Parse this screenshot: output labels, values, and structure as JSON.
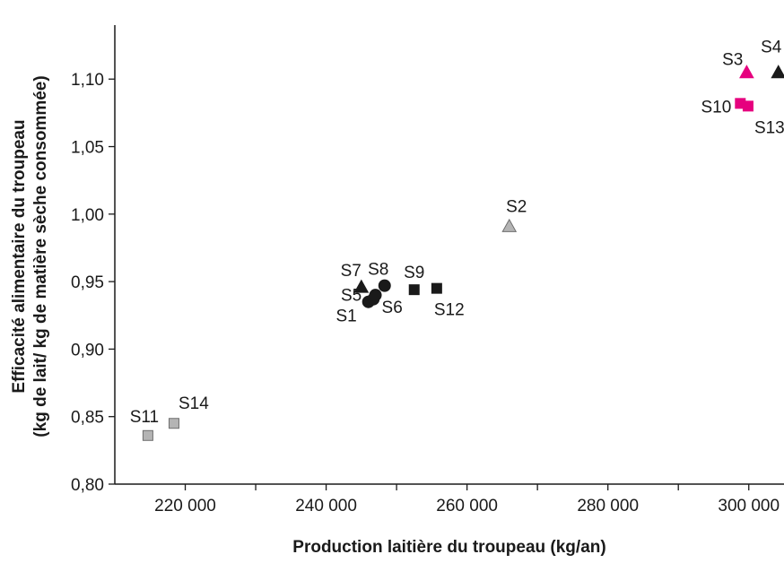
{
  "chart_data": {
    "type": "scatter",
    "title": "",
    "xlabel": "Production laitière du troupeau (kg/an)",
    "ylabel_line1": "Efficacité alimentaire du troupeau",
    "ylabel_line2": "(kg de lait/ kg de matière sèche consommée)",
    "xlim": [
      210000,
      305000
    ],
    "ylim": [
      0.8,
      1.14
    ],
    "xticks": [
      220000,
      240000,
      260000,
      280000,
      300000
    ],
    "xtick_labels": [
      "220 000",
      "240 000",
      "260 000",
      "280 000",
      "300 000"
    ],
    "yticks": [
      0.8,
      0.85,
      0.9,
      0.95,
      1.0,
      1.05,
      1.1
    ],
    "ytick_labels": [
      "0,80",
      "0,85",
      "0,90",
      "0,95",
      "1,00",
      "1,05",
      "1,10"
    ],
    "grid": false,
    "colors": {
      "black": "#1a1a1a",
      "grey": "#b4b4b4",
      "magenta": "#e6007e"
    },
    "points": [
      {
        "name": "S1",
        "x": 246000,
        "y": 0.935,
        "shape": "circle",
        "color": "black"
      },
      {
        "name": "S2",
        "x": 266000,
        "y": 0.991,
        "shape": "triangle",
        "color": "grey"
      },
      {
        "name": "S3",
        "x": 299700,
        "y": 1.105,
        "shape": "triangle",
        "color": "magenta"
      },
      {
        "name": "S4",
        "x": 304200,
        "y": 1.105,
        "shape": "triangle",
        "color": "black"
      },
      {
        "name": "S5",
        "x": 246700,
        "y": 0.937,
        "shape": "circle",
        "color": "black"
      },
      {
        "name": "S6",
        "x": 247000,
        "y": 0.94,
        "shape": "circle",
        "color": "black"
      },
      {
        "name": "S7",
        "x": 245000,
        "y": 0.946,
        "shape": "triangle",
        "color": "black"
      },
      {
        "name": "S8",
        "x": 248300,
        "y": 0.947,
        "shape": "circle",
        "color": "black"
      },
      {
        "name": "S9",
        "x": 252500,
        "y": 0.944,
        "shape": "square",
        "color": "black"
      },
      {
        "name": "S10",
        "x": 298800,
        "y": 1.082,
        "shape": "square",
        "color": "magenta"
      },
      {
        "name": "S11",
        "x": 214700,
        "y": 0.836,
        "shape": "square",
        "color": "grey"
      },
      {
        "name": "S12",
        "x": 255700,
        "y": 0.945,
        "shape": "square",
        "color": "black"
      },
      {
        "name": "S13",
        "x": 299900,
        "y": 1.08,
        "shape": "square",
        "color": "magenta"
      },
      {
        "name": "S14",
        "x": 218400,
        "y": 0.845,
        "shape": "square",
        "color": "grey"
      }
    ]
  }
}
